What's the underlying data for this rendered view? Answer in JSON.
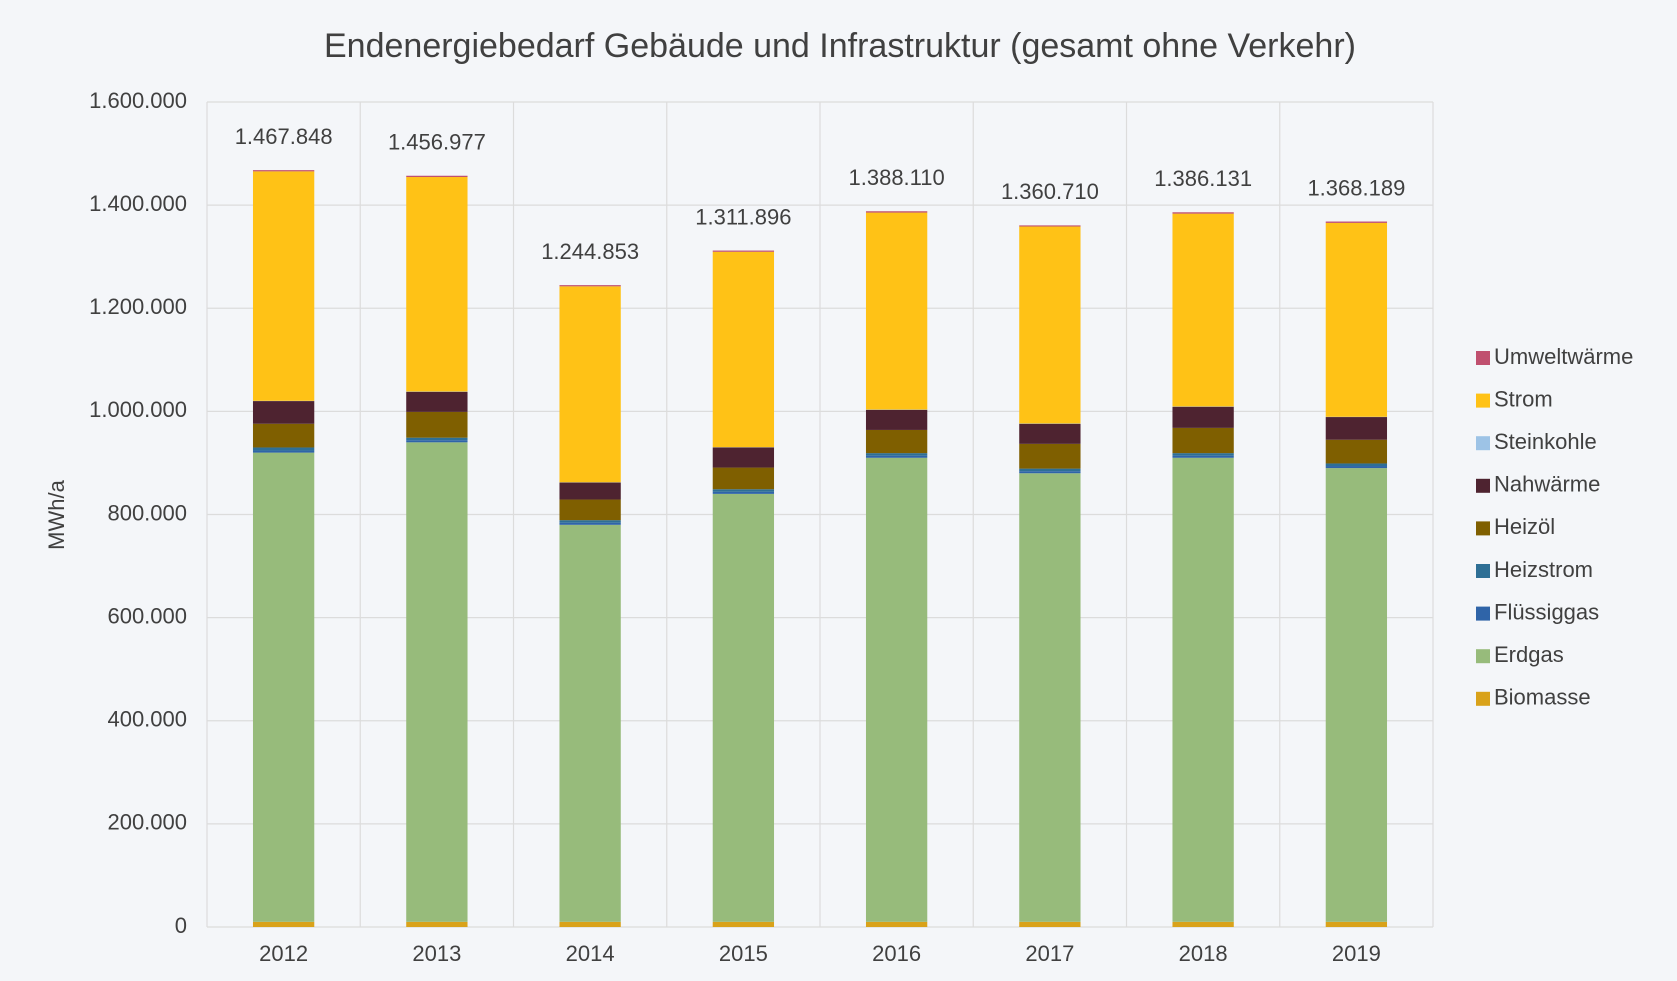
{
  "chart_data": {
    "type": "stacked_bar",
    "title": "Endenergiebedarf Gebäude und Infrastruktur (gesamt ohne Verkehr)",
    "y_label": "MWh/a",
    "categories": [
      "2012",
      "2013",
      "2014",
      "2015",
      "2016",
      "2017",
      "2018",
      "2019"
    ],
    "series": [
      {
        "name": "Biomasse",
        "color": "#d9a21a",
        "values": [
          10000,
          10000,
          10000,
          10000,
          10000,
          10000,
          10000,
          10000
        ]
      },
      {
        "name": "Erdgas",
        "color": "#97bb7b",
        "values": [
          910000,
          930000,
          770000,
          830000,
          900000,
          870000,
          900000,
          880000
        ]
      },
      {
        "name": "Flüssiggas",
        "color": "#2f64a8",
        "values": [
          4000,
          4000,
          4000,
          4000,
          4000,
          4000,
          4000,
          4000
        ]
      },
      {
        "name": "Heizstrom",
        "color": "#2e6f95",
        "values": [
          6000,
          5000,
          5000,
          5000,
          5000,
          5000,
          5000,
          5000
        ]
      },
      {
        "name": "Heizöl",
        "color": "#7f5f00",
        "values": [
          46000,
          50000,
          40000,
          42000,
          45000,
          48000,
          49000,
          46000
        ]
      },
      {
        "name": "Nahwärme",
        "color": "#4e2330",
        "values": [
          44000,
          39000,
          33000,
          39000,
          39000,
          39000,
          41000,
          44000
        ]
      },
      {
        "name": "Steinkohle",
        "color": "#9dc3e6",
        "values": [
          500,
          500,
          500,
          500,
          500,
          500,
          500,
          500
        ]
      },
      {
        "name": "Strom",
        "color": "#ffc216",
        "values": [
          445000,
          416000,
          380000,
          379000,
          382000,
          382000,
          374000,
          376000
        ]
      },
      {
        "name": "Umweltwärme",
        "color": "#c0506f",
        "values": [
          2348,
          2477,
          2353,
          2396,
          2610,
          2210,
          2631,
          2689
        ]
      }
    ],
    "totals": [
      1467848,
      1456977,
      1244853,
      1311896,
      1388110,
      1360710,
      1386131,
      1368189
    ],
    "total_labels": [
      "1.467.848",
      "1.456.977",
      "1.244.853",
      "1.311.896",
      "1.388.110",
      "1.360.710",
      "1.386.131",
      "1.368.189"
    ],
    "ylim": [
      0,
      1600000
    ],
    "yticks": [
      0,
      {
        "value": 200000,
        "label": "200.000"
      },
      {
        "value": 400000,
        "label": "400.000"
      },
      {
        "value": 600000,
        "label": "600.000"
      },
      {
        "value": 800000,
        "label": "800.000"
      },
      {
        "value": 1000000,
        "label": "1.000.000"
      },
      {
        "value": 1200000,
        "label": "1.200.000"
      },
      {
        "value": 1400000,
        "label": "1.400.000"
      },
      {
        "value": 1600000,
        "label": "1.600.000"
      }
    ],
    "grid": true,
    "legend": "right"
  }
}
